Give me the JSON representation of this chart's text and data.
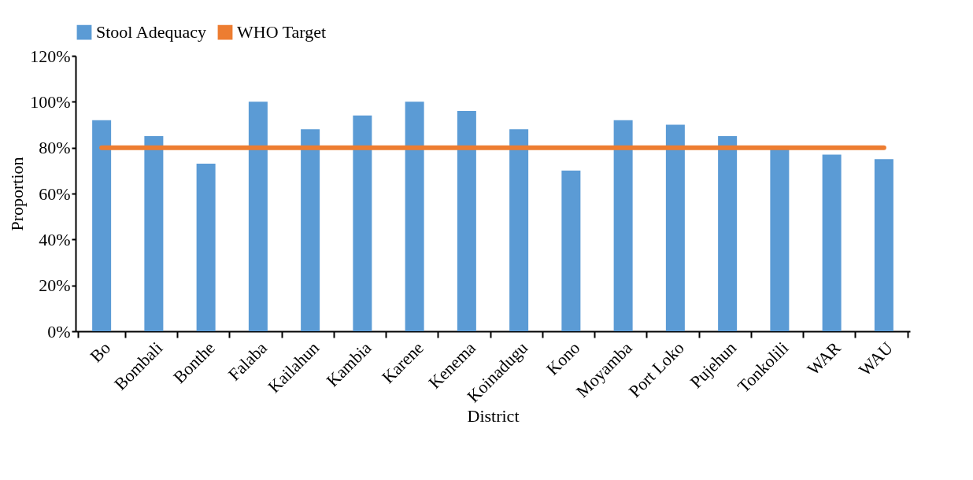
{
  "chart_data": {
    "type": "bar",
    "xlabel": "District",
    "ylabel": "Proportion",
    "categories": [
      "Bo",
      "Bombali",
      "Bonthe",
      "Falaba",
      "Kailahun",
      "Kambia",
      "Karene",
      "Kenema",
      "Koinadugu",
      "Kono",
      "Moyamba",
      "Port Loko",
      "Pujehun",
      "Tonkolili",
      "WAR",
      "WAU"
    ],
    "series": [
      {
        "name": "Stool Adequacy",
        "color": "#5b9bd5",
        "values": [
          92,
          85,
          73,
          100,
          88,
          94,
          100,
          96,
          88,
          70,
          92,
          90,
          85,
          80,
          77,
          75
        ]
      },
      {
        "name": "WHO Target",
        "type": "line",
        "color": "#ed7d31",
        "values": [
          80,
          80,
          80,
          80,
          80,
          80,
          80,
          80,
          80,
          80,
          80,
          80,
          80,
          80,
          80,
          80
        ]
      }
    ],
    "ylim": [
      0,
      120
    ],
    "yticks": [
      {
        "value": 0,
        "label": "0%"
      },
      {
        "value": 20,
        "label": "20%"
      },
      {
        "value": 40,
        "label": "40%"
      },
      {
        "value": 60,
        "label": "60%"
      },
      {
        "value": 80,
        "label": "80%"
      },
      {
        "value": 100,
        "label": "100%"
      },
      {
        "value": 120,
        "label": "120%"
      }
    ],
    "grid": false,
    "legend": "top",
    "marker": "none"
  }
}
